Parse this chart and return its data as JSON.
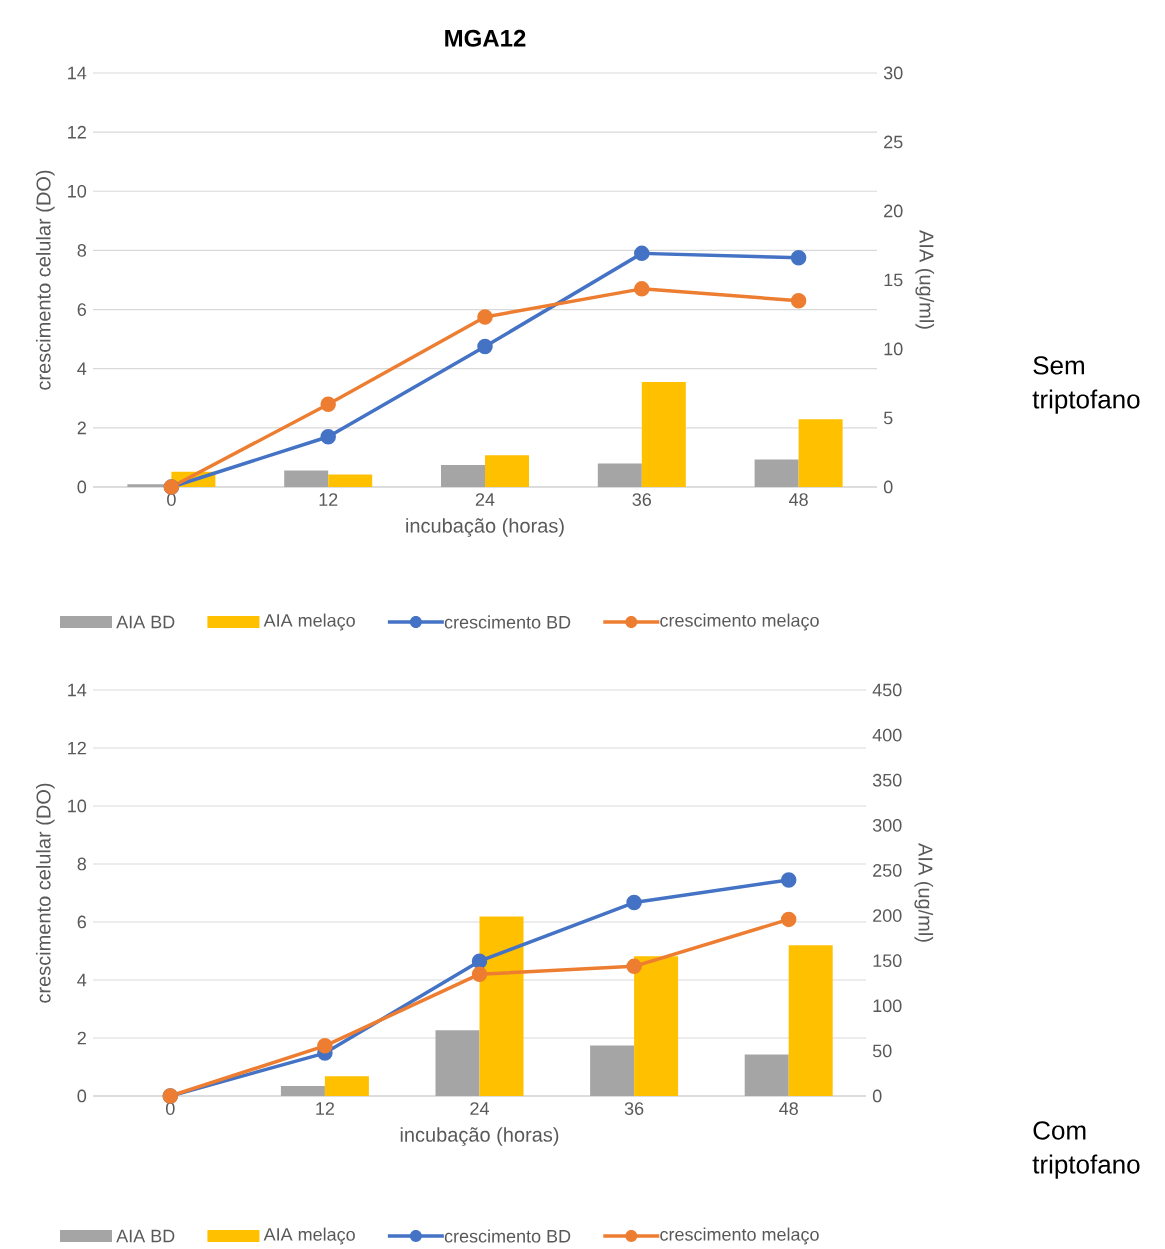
{
  "chart_data": [
    {
      "type": "bar",
      "title": "MGA12",
      "xlabel": "incubação (horas)",
      "ylabel": "crescimento celular (DO)",
      "y2label": "AIA (ug/ml)",
      "categories": [
        "0",
        "12",
        "24",
        "36",
        "48"
      ],
      "ylim": [
        0,
        14
      ],
      "yticks": [
        0,
        2,
        4,
        6,
        8,
        10,
        12,
        14
      ],
      "y2lim": [
        0,
        30
      ],
      "y2ticks": [
        0,
        5,
        10,
        15,
        20,
        25,
        30
      ],
      "grid": true,
      "legend": "bottom",
      "marker": "circle",
      "series": [
        {
          "name": "AIA BD",
          "axis": "y2",
          "color": "#a5a5a5",
          "values": [
            0.2,
            1.2,
            1.6,
            1.7,
            2.0
          ]
        },
        {
          "name": "AIA melaço",
          "axis": "y2",
          "color": "#ffc000",
          "values": [
            1.1,
            0.9,
            2.3,
            7.6,
            4.9
          ]
        },
        {
          "name": "crescimento BD",
          "type": "line",
          "color": "#4472c4",
          "values": [
            0,
            1.7,
            4.75,
            7.9,
            7.75
          ]
        },
        {
          "name": "crescimento melaço",
          "type": "line",
          "color": "#ed7d31",
          "values": [
            0,
            2.8,
            5.75,
            6.7,
            6.3
          ]
        }
      ],
      "annotations": [
        "Sem triptofano"
      ]
    },
    {
      "type": "bar",
      "xlabel": "incubação (horas)",
      "ylabel": "crescimento celular (DO)",
      "y2label": "AIA (ug/ml)",
      "categories": [
        "0",
        "12",
        "24",
        "36",
        "48"
      ],
      "ylim": [
        0,
        14
      ],
      "yticks": [
        0,
        2,
        4,
        6,
        8,
        10,
        12,
        14
      ],
      "y2lim": [
        0,
        450
      ],
      "y2ticks": [
        0,
        50,
        100,
        150,
        200,
        250,
        300,
        350,
        400,
        450
      ],
      "grid": true,
      "legend": "bottom",
      "marker": "circle",
      "series": [
        {
          "name": "AIA BD",
          "axis": "y2",
          "color": "#a5a5a5",
          "values": [
            0,
            11,
            73,
            56,
            46
          ]
        },
        {
          "name": "AIA melaço",
          "axis": "y2",
          "color": "#ffc000",
          "values": [
            0,
            22,
            199,
            155,
            167
          ]
        },
        {
          "name": "crescimento BD",
          "type": "line",
          "color": "#4472c4",
          "values": [
            0,
            1.48,
            4.65,
            6.67,
            7.45
          ]
        },
        {
          "name": "crescimento melaço",
          "type": "line",
          "color": "#ed7d31",
          "values": [
            0,
            1.73,
            4.2,
            4.47,
            6.09
          ]
        }
      ],
      "annotations": [
        "Com triptofano"
      ]
    }
  ]
}
